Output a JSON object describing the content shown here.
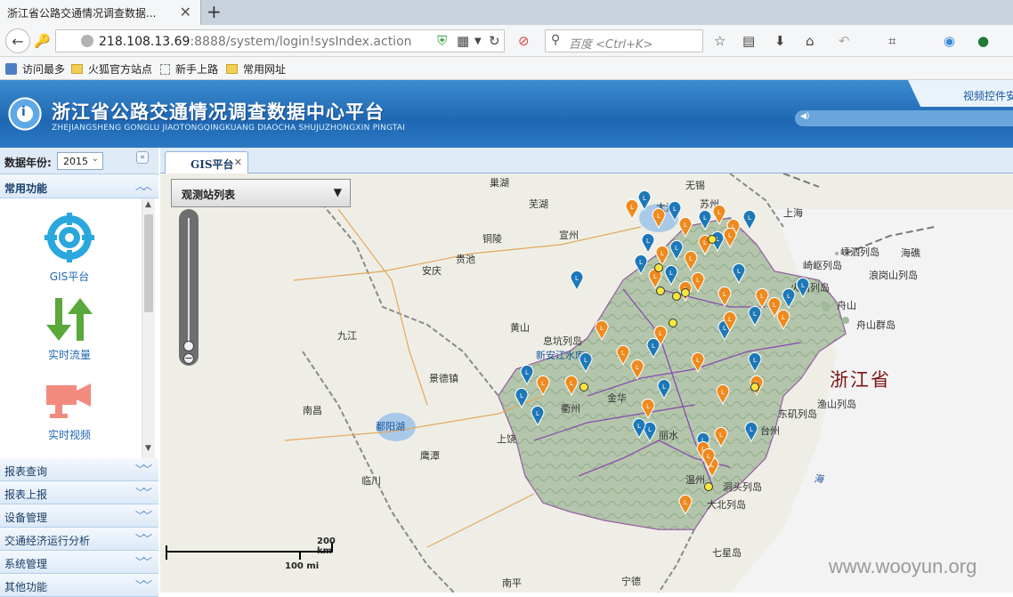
{
  "browser": {
    "tab_title": "浙江省公路交通情况调查数据...",
    "url_host": "218.108.13.69",
    "url_rest": ":8888/system/login!sysIndex.action",
    "search_placeholder": "百度 <Ctrl+K>",
    "bookmarks": [
      "访问最多",
      "火狐官方站点",
      "新手上路",
      "常用网址"
    ]
  },
  "header": {
    "title": "浙江省公路交通情况调查数据中心平台",
    "subtitle": "ZHEJIANGSHENG GONGLU JIAOTONGQINGKUANG DIAOCHA SHUJUZHONGXIN PINGTAI",
    "video_control": "视频控件安"
  },
  "sidebar": {
    "year_label": "数据年份:",
    "year_value": "2015",
    "common_label": "常用功能",
    "functions": [
      {
        "label": "GIS平台",
        "icon": "gis-target-icon"
      },
      {
        "label": "实时流量",
        "icon": "traffic-arrows-icon"
      },
      {
        "label": "实时视频",
        "icon": "video-camera-icon"
      }
    ],
    "sections": [
      "报表查询",
      "报表上报",
      "设备管理",
      "交通经济运行分析",
      "系统管理",
      "其他功能"
    ]
  },
  "main": {
    "tab_label": "GIS平台",
    "station_list_label": "观测站列表",
    "scale_km": "200 km",
    "scale_mi": "100 mi",
    "region_label": "浙江省",
    "cities": [
      {
        "name": "巢湖"
      },
      {
        "name": "无锡"
      },
      {
        "name": "芜湖"
      },
      {
        "name": "太湖"
      },
      {
        "name": "苏州"
      },
      {
        "name": "上海"
      },
      {
        "name": "铜陵"
      },
      {
        "name": "宣州"
      },
      {
        "name": "贵池"
      },
      {
        "name": "安庆"
      },
      {
        "name": "嵊泗列岛"
      },
      {
        "name": "海礁"
      },
      {
        "name": "崎岖列岛"
      },
      {
        "name": "浪岗山列岛"
      },
      {
        "name": "火山列岛"
      },
      {
        "name": "黄山"
      },
      {
        "name": "舟山"
      },
      {
        "name": "九江"
      },
      {
        "name": "舟山群岛"
      },
      {
        "name": "息坑列岛"
      },
      {
        "name": "新安江水库"
      },
      {
        "name": "景德镇"
      },
      {
        "name": "金华"
      },
      {
        "name": "衢州"
      },
      {
        "name": "南昌"
      },
      {
        "name": "鄱阳湖"
      },
      {
        "name": "东矶列岛"
      },
      {
        "name": "渔山列岛"
      },
      {
        "name": "上饶"
      },
      {
        "name": "台州"
      },
      {
        "name": "丽水"
      },
      {
        "name": "鹰潭"
      },
      {
        "name": "临川"
      },
      {
        "name": "洞头列岛"
      },
      {
        "name": "温州"
      },
      {
        "name": "大北列岛"
      },
      {
        "name": "海"
      },
      {
        "name": "七星岛"
      },
      {
        "name": "南平"
      },
      {
        "name": "宁德"
      }
    ]
  },
  "watermark": "www.wooyun.org"
}
